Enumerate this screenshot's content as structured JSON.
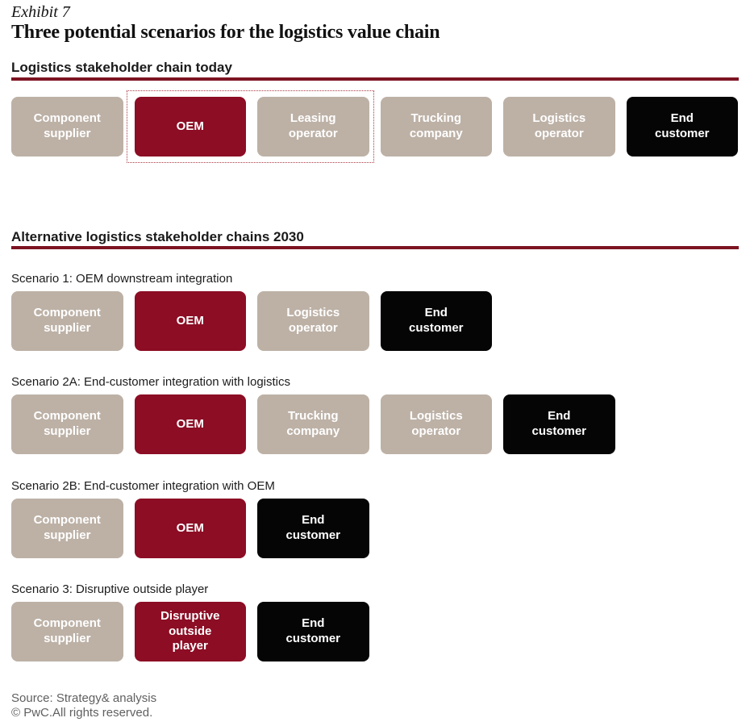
{
  "header": {
    "exhibit_label": "Exhibit 7",
    "title": "Three potential scenarios for the logistics value chain"
  },
  "sections": {
    "today": {
      "heading": "Logistics stakeholder chain today",
      "boxes": [
        {
          "label": "Component supplier",
          "type": "tan"
        },
        {
          "label": "OEM",
          "type": "red"
        },
        {
          "label": "Leasing operator",
          "type": "tan"
        },
        {
          "label": "Trucking company",
          "type": "tan"
        },
        {
          "label": "Logistics operator",
          "type": "tan"
        },
        {
          "label": "End customer",
          "type": "black"
        }
      ]
    },
    "alt2030": {
      "heading": "Alternative logistics stakeholder chains 2030",
      "scenarios": [
        {
          "label": "Scenario 1: OEM downstream integration",
          "boxes": [
            {
              "label": "Component supplier",
              "type": "tan"
            },
            {
              "label": "OEM",
              "type": "red"
            },
            {
              "label": "Logistics operator",
              "type": "tan"
            },
            {
              "label": "End customer",
              "type": "black"
            }
          ]
        },
        {
          "label": "Scenario 2A: End-customer integration with logistics",
          "boxes": [
            {
              "label": "Component supplier",
              "type": "tan"
            },
            {
              "label": "OEM",
              "type": "red"
            },
            {
              "label": "Trucking company",
              "type": "tan"
            },
            {
              "label": "Logistics operator",
              "type": "tan"
            },
            {
              "label": "End customer",
              "type": "black"
            }
          ]
        },
        {
          "label": "Scenario 2B: End-customer integration with OEM",
          "boxes": [
            {
              "label": "Component supplier",
              "type": "tan"
            },
            {
              "label": "OEM",
              "type": "red"
            },
            {
              "label": "End customer",
              "type": "black"
            }
          ]
        },
        {
          "label": "Scenario 3: Disruptive outside player",
          "boxes": [
            {
              "label": "Component supplier",
              "type": "tan"
            },
            {
              "label": "Disruptive outside player",
              "type": "red"
            },
            {
              "label": "End customer",
              "type": "black"
            }
          ]
        }
      ]
    }
  },
  "footer": {
    "source": "Source: Strategy& analysis",
    "copyright": "© PwC.All rights reserved."
  },
  "colors": {
    "tan": "#BDB1A6",
    "red": "#8C0D24",
    "black": "#050505",
    "rule": "#7D1422",
    "dotted_border": "#A93A44",
    "box_text": "#FFFFFF"
  }
}
